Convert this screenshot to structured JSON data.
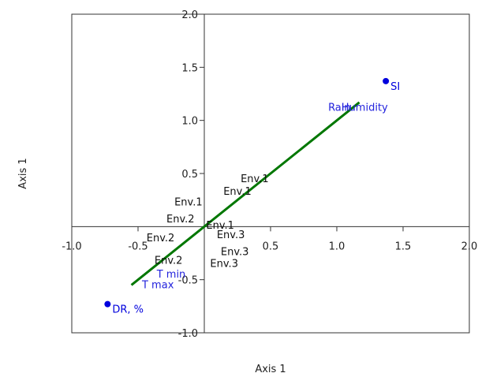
{
  "chart_data": {
    "type": "scatter",
    "title": "",
    "xlabel": "Axis 1",
    "ylabel": "Axis 1",
    "xlim": [
      -1.0,
      2.0
    ],
    "ylim": [
      -1.0,
      2.0
    ],
    "x_ticks": [
      -1.0,
      -0.5,
      0.5,
      1.0,
      1.5,
      2.0
    ],
    "y_ticks": [
      -1.0,
      -0.5,
      0.5,
      1.0,
      1.5,
      2.0
    ],
    "x_tick_labels": [
      "-1.0",
      "-0.5",
      "0.5",
      "1.0",
      "1.5",
      "2.0"
    ],
    "y_tick_labels": [
      "-1.0",
      "-0.5",
      "0.5",
      "1.0",
      "1.5",
      "2.0"
    ],
    "grid": false,
    "axes_through_origin": true,
    "fitted_line": {
      "x": [
        -0.55,
        1.17
      ],
      "y": [
        -0.55,
        1.17
      ],
      "color": "#007700"
    },
    "points": [
      {
        "label": "SI",
        "x": 1.37,
        "y": 1.37,
        "color": "#0000dd",
        "marker": true
      },
      {
        "label": "DR, %",
        "x": -0.73,
        "y": -0.73,
        "color": "#0000dd",
        "marker": true
      }
    ],
    "variable_labels": [
      {
        "label": "Rain",
        "x": 1.02,
        "y": 1.09,
        "color": "#2222dd"
      },
      {
        "label": "Humidity",
        "x": 1.21,
        "y": 1.09,
        "color": "#2222dd"
      },
      {
        "label": "T min",
        "x": -0.25,
        "y": -0.48,
        "color": "#2222dd"
      },
      {
        "label": "T max",
        "x": -0.35,
        "y": -0.58,
        "color": "#2222dd"
      }
    ],
    "environment_labels": [
      {
        "label": "Env.1",
        "x": 0.38,
        "y": 0.42
      },
      {
        "label": "Env.1",
        "x": 0.25,
        "y": 0.3
      },
      {
        "label": "Env.1",
        "x": -0.12,
        "y": 0.2
      },
      {
        "label": "Env.2",
        "x": -0.18,
        "y": 0.04
      },
      {
        "label": "Env.1",
        "x": 0.12,
        "y": -0.02
      },
      {
        "label": "Env.2",
        "x": -0.33,
        "y": -0.14
      },
      {
        "label": "Env.3",
        "x": 0.2,
        "y": -0.11
      },
      {
        "label": "Env.3",
        "x": 0.23,
        "y": -0.27
      },
      {
        "label": "Env.2",
        "x": -0.27,
        "y": -0.35
      },
      {
        "label": "Env.3",
        "x": 0.15,
        "y": -0.38
      }
    ]
  }
}
